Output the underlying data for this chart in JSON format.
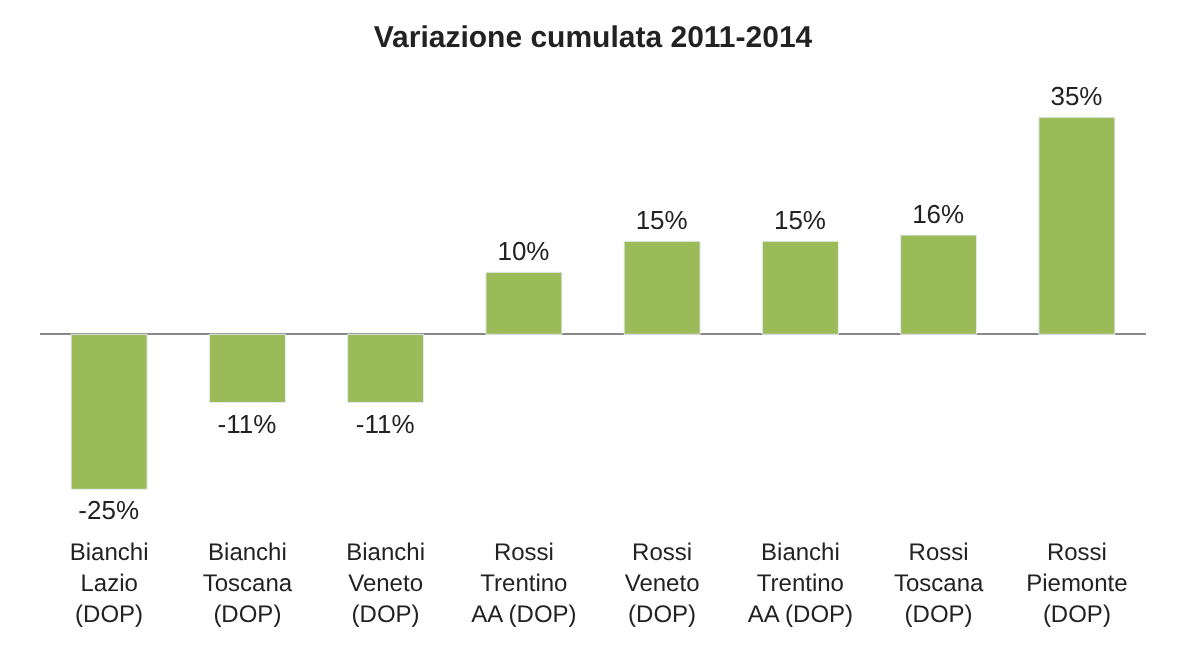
{
  "chart_data": {
    "type": "bar",
    "title": "Variazione cumulata 2011-2014",
    "categories": [
      "Bianchi\nLazio\n(DOP)",
      "Bianchi\nToscana\n(DOP)",
      "Bianchi\nVeneto\n(DOP)",
      "Rossi\nTrentino\nAA (DOP)",
      "Rossi\nVeneto\n(DOP)",
      "Bianchi\nTrentino\nAA (DOP)",
      "Rossi\nToscana\n(DOP)",
      "Rossi\nPiemonte\n(DOP)"
    ],
    "values": [
      -25,
      -11,
      -11,
      10,
      15,
      15,
      16,
      35
    ],
    "value_labels": [
      "-25%",
      "-11%",
      "-11%",
      "10%",
      "15%",
      "15%",
      "16%",
      "35%"
    ],
    "color": "#9bbb59",
    "legend": false,
    "tick_labels": "x"
  }
}
